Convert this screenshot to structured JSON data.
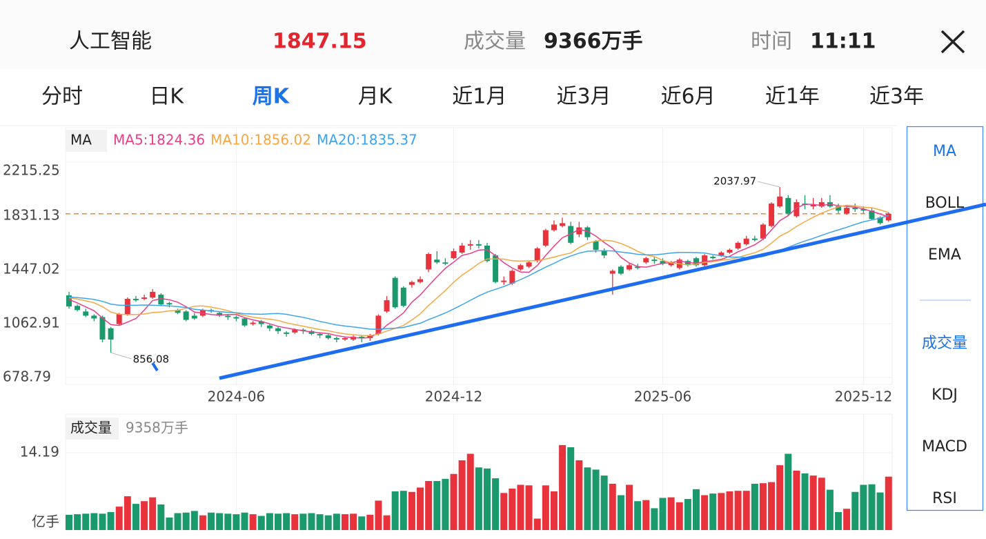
{
  "header": {
    "title": "人工智能",
    "price": 1847.15,
    "volume_label": "成交量",
    "volume": "9366万手",
    "time_label": "时间",
    "time": "11:11"
  },
  "tabs": {
    "items": [
      "分时",
      "日K",
      "周K",
      "月K",
      "近1月",
      "近3月",
      "近6月",
      "近1年",
      "近3年"
    ],
    "selected": 2
  },
  "indicators": {
    "items": [
      "MA",
      "BOLL",
      "EMA",
      "成交量",
      "KDJ",
      "MACD",
      "RSI"
    ],
    "active": [
      0,
      3
    ]
  },
  "chart_data": [
    {
      "type": "candlestick",
      "legend_title": "MA",
      "up_color": "#e8323c",
      "down_color": "#1a9a6c",
      "categories": [
        null,
        null,
        null,
        null,
        null,
        null,
        null,
        null,
        null,
        null,
        null,
        null,
        null,
        null,
        null,
        null,
        null,
        null,
        null,
        null,
        "2024-06",
        null,
        null,
        null,
        null,
        null,
        null,
        null,
        null,
        null,
        null,
        null,
        null,
        null,
        null,
        null,
        null,
        null,
        null,
        null,
        null,
        null,
        null,
        null,
        null,
        null,
        "2024-12",
        null,
        null,
        null,
        null,
        null,
        null,
        null,
        null,
        null,
        null,
        null,
        null,
        null,
        null,
        null,
        null,
        null,
        null,
        null,
        null,
        null,
        null,
        null,
        null,
        "2025-06",
        null,
        null,
        null,
        null,
        null,
        null,
        null,
        null,
        null,
        null,
        null,
        null,
        null,
        null,
        null,
        null,
        null,
        null,
        null,
        null,
        null,
        null,
        null,
        "2025-12",
        null,
        null,
        null
      ],
      "open": [
        1265,
        1190,
        1150,
        1120,
        1110,
        1030,
        1060,
        1130,
        1240,
        1240,
        1250,
        1270,
        1210,
        1160,
        1150,
        1120,
        1120,
        1160,
        1140,
        1120,
        1110,
        1100,
        1060,
        1080,
        1050,
        1030,
        1000,
        1000,
        1020,
        1010,
        990,
        980,
        960,
        950,
        950,
        970,
        960,
        990,
        1150,
        1390,
        1320,
        1340,
        1360,
        1450,
        1520,
        1500,
        1530,
        1570,
        1620,
        1630,
        1620,
        1550,
        1360,
        1350,
        1450,
        1470,
        1510,
        1620,
        1730,
        1760,
        1760,
        1700,
        1750,
        1650,
        1580,
        1420,
        1470,
        1450,
        1470,
        1500,
        1520,
        1510,
        1480,
        1460,
        1510,
        1530,
        1480,
        1540,
        1550,
        1570,
        1600,
        1630,
        1670,
        1670,
        1760,
        1900,
        1960,
        1830,
        1920,
        1900,
        1900,
        1930,
        1900,
        1850,
        1890,
        1880,
        1870,
        1820,
        1800
      ],
      "high": [
        1290,
        1200,
        1170,
        1130,
        1120,
        1040,
        1140,
        1250,
        1260,
        1270,
        1310,
        1280,
        1220,
        1170,
        1160,
        1140,
        1170,
        1170,
        1150,
        1130,
        1120,
        1110,
        1080,
        1090,
        1060,
        1040,
        1010,
        1030,
        1030,
        1020,
        1000,
        990,
        970,
        970,
        980,
        980,
        990,
        1130,
        1260,
        1400,
        1330,
        1370,
        1400,
        1570,
        1580,
        1530,
        1600,
        1640,
        1660,
        1660,
        1640,
        1560,
        1400,
        1450,
        1490,
        1510,
        1610,
        1740,
        1800,
        1820,
        1790,
        1790,
        1760,
        1660,
        1600,
        1450,
        1480,
        1500,
        1490,
        1540,
        1540,
        1530,
        1510,
        1530,
        1520,
        1540,
        1560,
        1550,
        1580,
        1600,
        1650,
        1690,
        1690,
        1780,
        1930,
        2037.97,
        1980,
        1950,
        1980,
        1960,
        1960,
        1980,
        1920,
        1910,
        1920,
        1900,
        1890,
        1830,
        1860
      ],
      "low": [
        1170,
        1150,
        1110,
        1080,
        930,
        856.08,
        1050,
        1120,
        1220,
        1230,
        1240,
        1190,
        1180,
        1130,
        1080,
        1090,
        1110,
        1140,
        1110,
        1090,
        1080,
        1040,
        1050,
        1040,
        1010,
        990,
        970,
        990,
        990,
        980,
        960,
        950,
        930,
        940,
        940,
        930,
        940,
        980,
        1140,
        1170,
        1180,
        1320,
        1350,
        1430,
        1490,
        1480,
        1520,
        1560,
        1590,
        1600,
        1500,
        1350,
        1340,
        1340,
        1440,
        1460,
        1500,
        1610,
        1720,
        1750,
        1630,
        1680,
        1660,
        1570,
        1530,
        1270,
        1410,
        1440,
        1450,
        1490,
        1490,
        1480,
        1470,
        1450,
        1470,
        1470,
        1470,
        1520,
        1540,
        1560,
        1590,
        1620,
        1650,
        1660,
        1750,
        1890,
        1830,
        1820,
        1880,
        1880,
        1890,
        1890,
        1850,
        1840,
        1860,
        1850,
        1800,
        1770,
        1790
      ],
      "close": [
        1186,
        1160,
        1120,
        1100,
        950,
        950,
        1130,
        1240,
        1230,
        1250,
        1290,
        1200,
        1200,
        1140,
        1090,
        1100,
        1160,
        1150,
        1120,
        1110,
        1100,
        1050,
        1070,
        1060,
        1030,
        1010,
        990,
        1020,
        1010,
        990,
        980,
        960,
        950,
        960,
        970,
        960,
        980,
        1120,
        1230,
        1180,
        1190,
        1360,
        1380,
        1560,
        1500,
        1490,
        1580,
        1620,
        1630,
        1620,
        1510,
        1360,
        1370,
        1440,
        1480,
        1500,
        1600,
        1730,
        1770,
        1780,
        1640,
        1750,
        1680,
        1590,
        1550,
        1440,
        1420,
        1480,
        1460,
        1530,
        1510,
        1490,
        1500,
        1520,
        1480,
        1480,
        1550,
        1530,
        1570,
        1590,
        1640,
        1670,
        1660,
        1770,
        1920,
        1970,
        1850,
        1930,
        1910,
        1910,
        1930,
        1900,
        1870,
        1890,
        1880,
        1870,
        1810,
        1780,
        1847.15
      ],
      "series": [
        {
          "name": "MA5:1824.36",
          "color": "#e83e8c",
          "values": [
            1235,
            1211,
            1183,
            1155,
            1103,
            1056,
            1050,
            1074,
            1100,
            1160,
            1228,
            1242,
            1234,
            1216,
            1184,
            1146,
            1138,
            1128,
            1124,
            1128,
            1128,
            1106,
            1090,
            1078,
            1062,
            1044,
            1032,
            1022,
            1012,
            1004,
            998,
            992,
            978,
            968,
            964,
            960,
            964,
            998,
            1052,
            1094,
            1140,
            1216,
            1268,
            1334,
            1398,
            1458,
            1502,
            1550,
            1564,
            1588,
            1592,
            1548,
            1498,
            1460,
            1432,
            1430,
            1478,
            1550,
            1616,
            1676,
            1704,
            1734,
            1724,
            1688,
            1642,
            1602,
            1536,
            1496,
            1470,
            1466,
            1480,
            1494,
            1498,
            1510,
            1500,
            1494,
            1506,
            1512,
            1522,
            1544,
            1576,
            1600,
            1626,
            1666,
            1732,
            1798,
            1834,
            1888,
            1916,
            1914,
            1906,
            1916,
            1904,
            1900,
            1894,
            1882,
            1864,
            1846,
            1824.36
          ]
        },
        {
          "name": "MA10:1856.02",
          "color": "#f5a742",
          "values": [
            1248,
            1238,
            1226,
            1212,
            1184,
            1146,
            1130,
            1128,
            1128,
            1132,
            1142,
            1146,
            1154,
            1158,
            1172,
            1187,
            1190,
            1181,
            1170,
            1156,
            1137,
            1122,
            1109,
            1101,
            1095,
            1086,
            1069,
            1056,
            1045,
            1033,
            1021,
            1012,
            1000,
            990,
            984,
            979,
            978,
            988,
            1010,
            1029,
            1050,
            1090,
            1133,
            1193,
            1246,
            1299,
            1359,
            1409,
            1449,
            1493,
            1525,
            1525,
            1524,
            1512,
            1510,
            1511,
            1513,
            1524,
            1538,
            1554,
            1567,
            1606,
            1637,
            1652,
            1659,
            1653,
            1635,
            1610,
            1579,
            1554,
            1541,
            1515,
            1497,
            1490,
            1483,
            1487,
            1500,
            1505,
            1516,
            1522,
            1535,
            1553,
            1569,
            1594,
            1638,
            1687,
            1717,
            1757,
            1791,
            1823,
            1852,
            1875,
            1896,
            1908,
            1904,
            1894,
            1890,
            1875,
            1856.02
          ]
        },
        {
          "name": "MA20:1835.37",
          "color": "#3ba4ee",
          "values": [
            1254,
            1249,
            1243,
            1236,
            1222,
            1203,
            1195,
            1194,
            1194,
            1196,
            1195,
            1192,
            1190,
            1185,
            1178,
            1166,
            1160,
            1154,
            1149,
            1144,
            1140,
            1134,
            1132,
            1130,
            1134,
            1136,
            1130,
            1118,
            1108,
            1094,
            1079,
            1067,
            1054,
            1046,
            1040,
            1032,
            1024,
            1022,
            1028,
            1031,
            1036,
            1051,
            1066,
            1092,
            1115,
            1139,
            1168,
            1198,
            1230,
            1261,
            1288,
            1308,
            1328,
            1352,
            1378,
            1405,
            1436,
            1466,
            1494,
            1523,
            1546,
            1566,
            1580,
            1582,
            1584,
            1582,
            1574,
            1567,
            1558,
            1554,
            1554,
            1560,
            1567,
            1571,
            1571,
            1570,
            1567,
            1557,
            1548,
            1538,
            1538,
            1534,
            1533,
            1542,
            1560,
            1587,
            1608,
            1631,
            1653,
            1672,
            1693,
            1714,
            1732,
            1751,
            1771,
            1790,
            1803,
            1816,
            1835.37
          ]
        }
      ],
      "ylim": [
        678.79,
        2215.25
      ],
      "yticks": [
        2215.25,
        1831.13,
        1447.02,
        1062.91,
        678.79
      ],
      "grid": true
    },
    {
      "type": "bar",
      "legend_title": "成交量",
      "summary": "9358万手",
      "values": [
        2.8,
        2.9,
        3.0,
        3.1,
        3.0,
        3.3,
        4.3,
        6.2,
        4.8,
        5.3,
        6.0,
        4.7,
        2.3,
        3.1,
        3.2,
        3.5,
        2.7,
        3.2,
        3.1,
        3.0,
        2.9,
        3.2,
        2.9,
        2.6,
        3.1,
        3.0,
        3.1,
        2.9,
        3.0,
        3.1,
        2.9,
        2.7,
        3.0,
        2.9,
        3.0,
        2.5,
        2.8,
        5.4,
        2.7,
        7.1,
        7.2,
        7.0,
        7.8,
        9.0,
        9.0,
        9.4,
        10.3,
        12.8,
        14.0,
        11.5,
        11.3,
        9.5,
        6.8,
        7.6,
        8.3,
        8.2,
        2.1,
        8.2,
        7.1,
        15.6,
        15.2,
        12.8,
        11.5,
        11.1,
        10.0,
        8.5,
        6.4,
        8.3,
        5.3,
        5.5,
        4.0,
        5.9,
        6.0,
        5.1,
        5.7,
        7.5,
        6.4,
        6.7,
        6.8,
        7.1,
        7.2,
        7.2,
        8.5,
        8.6,
        8.8,
        11.9,
        14.0,
        10.9,
        10.4,
        10.0,
        9.6,
        7.4,
        3.3,
        3.9,
        7.0,
        8.3,
        8.4,
        6.9,
        9.8
      ],
      "ylim": [
        0,
        16.22
      ],
      "yticks": [
        {
          "value": 0,
          "label": "亿手"
        },
        14.19
      ],
      "grid": true
    }
  ]
}
